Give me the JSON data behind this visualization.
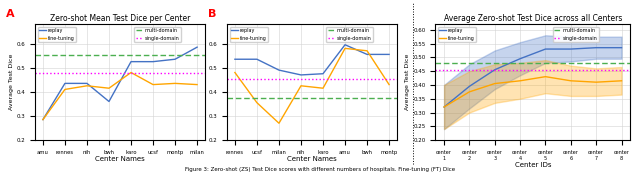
{
  "panel_A": {
    "title": "Zero-shot Mean Test Dice per Center",
    "xlabel": "Center Names",
    "ylabel": "Average Test Dice",
    "xlabels": [
      "amu",
      "rennes",
      "nih",
      "bwh",
      "karo",
      "ucsf",
      "montp",
      "milan"
    ],
    "replay": [
      0.285,
      0.435,
      0.435,
      0.36,
      0.525,
      0.525,
      0.535,
      0.585
    ],
    "finetuning": [
      0.285,
      0.41,
      0.425,
      0.415,
      0.48,
      0.43,
      0.435,
      0.43
    ],
    "multi_domain": 0.553,
    "single_domain": 0.48,
    "ylim": [
      0.2,
      0.68
    ]
  },
  "panel_A2": {
    "xlabel": "Center Names",
    "ylabel": "Average Test Dice",
    "xlabels": [
      "rennes",
      "ucsf",
      "milan",
      "nih",
      "karo",
      "amu",
      "bwh",
      "montp"
    ],
    "replay": [
      0.535,
      0.535,
      0.49,
      0.47,
      0.475,
      0.595,
      0.555,
      0.555
    ],
    "finetuning": [
      0.48,
      0.355,
      0.27,
      0.425,
      0.415,
      0.58,
      0.57,
      0.43
    ],
    "multi_domain": 0.375,
    "single_domain": 0.455,
    "ylim": [
      0.2,
      0.68
    ]
  },
  "panel_B": {
    "title": "Average Zero-shot Test Dice across all Centers",
    "xlabel": "Center IDs",
    "ylabel": "Average Test Dice",
    "x": [
      1,
      2,
      3,
      4,
      5,
      6,
      7,
      8
    ],
    "replay_mean": [
      0.32,
      0.395,
      0.455,
      0.495,
      0.53,
      0.53,
      0.535,
      0.535
    ],
    "replay_std": [
      0.08,
      0.08,
      0.07,
      0.06,
      0.05,
      0.045,
      0.04,
      0.04
    ],
    "finetuning_mean": [
      0.32,
      0.375,
      0.405,
      0.415,
      0.43,
      0.415,
      0.41,
      0.415
    ],
    "finetuning_std": [
      0.08,
      0.075,
      0.07,
      0.065,
      0.06,
      0.055,
      0.05,
      0.05
    ],
    "multi_domain": 0.478,
    "single_domain": 0.455,
    "ylim": [
      0.2,
      0.62
    ]
  },
  "colors": {
    "replay": "#4472C4",
    "finetuning": "#FFA500",
    "multi_domain": "#4CAF50",
    "single_domain": "#FF00FF"
  }
}
